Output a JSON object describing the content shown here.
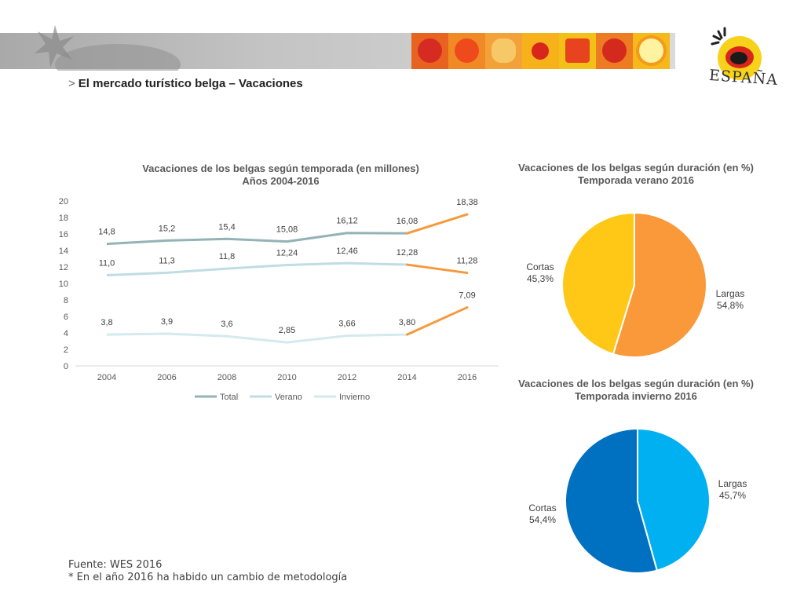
{
  "header": {
    "marker": ">",
    "title": "El mercado turístico belga – Vacaciones",
    "logo_text": "ESPAÑA"
  },
  "colors": {
    "total": "#93b3b7",
    "verano": "#bfdde2",
    "invierno": "#d5e9ee",
    "methodology_change": "#f59a3c",
    "summer_largas": "#f9993a",
    "summer_cortas": "#ffc817",
    "winter_largas": "#00b0f0",
    "winter_cortas": "#0070c0"
  },
  "chart_data": [
    {
      "type": "line",
      "title": "Vacaciones de los belgas según temporada (en millones)",
      "subtitle": "Años 2004-2016",
      "x": [
        "2004",
        "2006",
        "2008",
        "2010",
        "2012",
        "2014",
        "2016"
      ],
      "ylim": [
        0,
        20
      ],
      "yticks": [
        "0",
        "2",
        "4",
        "6",
        "8",
        "10",
        "12",
        "14",
        "16",
        "18",
        "20"
      ],
      "grid": false,
      "legend": "bottom",
      "series": [
        {
          "name": "Total",
          "values": [
            14.8,
            15.2,
            15.4,
            15.08,
            16.12,
            16.08,
            18.38
          ],
          "labels": [
            "14,8",
            "15,2",
            "15,4",
            "15,08",
            "16,12",
            "16,08",
            "18,38"
          ]
        },
        {
          "name": "Verano",
          "values": [
            11.0,
            11.3,
            11.8,
            12.24,
            12.46,
            12.28,
            11.28
          ],
          "labels": [
            "11,0",
            "11,3",
            "11,8",
            "12,24",
            "12,46",
            "12,28",
            "11,28"
          ]
        },
        {
          "name": "Invierno",
          "values": [
            3.8,
            3.9,
            3.6,
            2.85,
            3.66,
            3.8,
            7.09
          ],
          "labels": [
            "3,8",
            "3,9",
            "3,6",
            "2,85",
            "3,66",
            "3,80",
            "7,09"
          ]
        }
      ]
    },
    {
      "type": "pie",
      "title": "Vacaciones de los belgas según duración (en %)",
      "subtitle": "Temporada verano 2016",
      "slices": [
        {
          "name": "Largas",
          "value": 54.8,
          "label": "54,8%"
        },
        {
          "name": "Cortas",
          "value": 45.3,
          "label": "45,3%"
        }
      ]
    },
    {
      "type": "pie",
      "title": "Vacaciones de los belgas según duración (en %)",
      "subtitle": "Temporada invierno 2016",
      "slices": [
        {
          "name": "Largas",
          "value": 45.7,
          "label": "45,7%"
        },
        {
          "name": "Cortas",
          "value": 54.4,
          "label": "54,4%"
        }
      ]
    }
  ],
  "footer": {
    "source": "Fuente: WES 2016",
    "note": "* En el año 2016 ha habido un cambio de metodología"
  }
}
